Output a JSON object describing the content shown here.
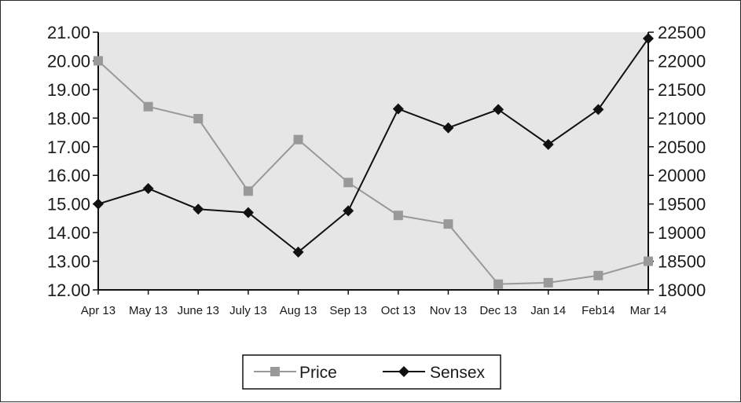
{
  "chart_data": {
    "type": "line",
    "title": "",
    "xlabel": "",
    "ylabel": "",
    "y2label": "",
    "categories": [
      "Apr 13",
      "May 13",
      "June 13",
      "July 13",
      "Aug 13",
      "Sep 13",
      "Oct 13",
      "Nov 13",
      "Dec 13",
      "Jan 14",
      "Feb14",
      "Mar 14"
    ],
    "y_left": {
      "range": [
        12,
        21
      ],
      "ticks": [
        "12.00",
        "13.00",
        "14.00",
        "15.00",
        "16.00",
        "17.00",
        "18.00",
        "19.00",
        "20.00",
        "21.00"
      ]
    },
    "y_right": {
      "range": [
        18000,
        22500
      ],
      "ticks": [
        "18000",
        "18500",
        "19000",
        "19500",
        "20000",
        "20500",
        "21000",
        "21500",
        "22000",
        "22500"
      ]
    },
    "grid": false,
    "legend_position": "bottom",
    "series": [
      {
        "name": "Price",
        "axis": "left",
        "marker": "square",
        "color": "#999999",
        "values": [
          20.0,
          18.4,
          17.98,
          15.45,
          17.25,
          15.75,
          14.6,
          14.3,
          12.2,
          12.25,
          12.5,
          13.0
        ]
      },
      {
        "name": "Sensex",
        "axis": "right",
        "marker": "diamond",
        "color": "#111111",
        "values": [
          19500,
          19770,
          19410,
          19350,
          18660,
          19380,
          21160,
          20830,
          21150,
          20540,
          21150,
          22390
        ]
      }
    ],
    "plot_bg": "#e6e6e6"
  }
}
